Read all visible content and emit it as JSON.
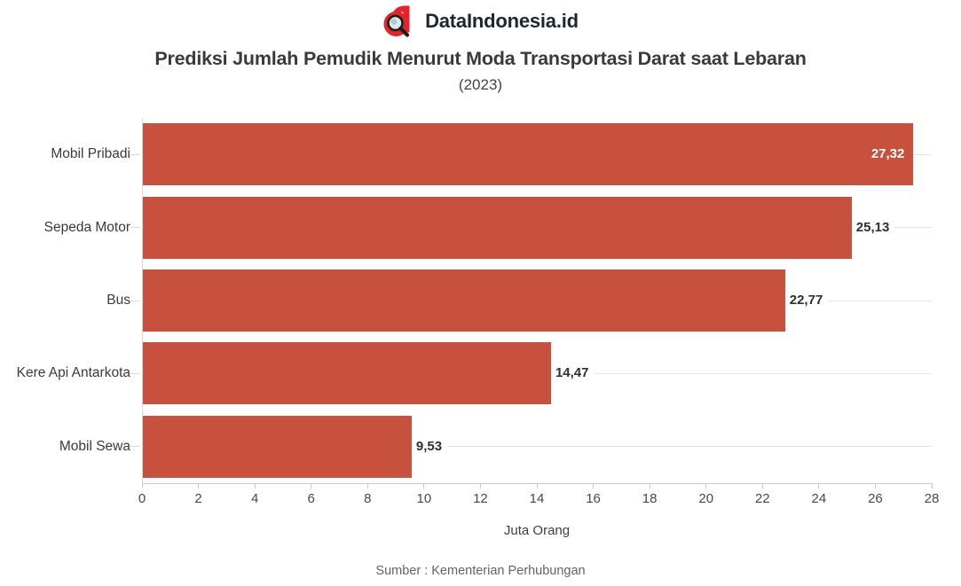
{
  "brand": {
    "name": "DataIndonesia.id"
  },
  "source": "Sumber : Kementerian Perhubungan",
  "colors": {
    "bar": "#C7513C",
    "logo_red": "#E3242B",
    "logo_handle": "#1e1e1e",
    "logo_lens": "#d8ebe7",
    "title_text": "#3A3A3A",
    "axis_line": "#C9C9C9",
    "row_grid_line": "#E6E6E6",
    "value_label": "#2F2F2F",
    "value_label_inside": "#FFFFFF"
  },
  "chart_data": {
    "type": "bar",
    "orientation": "horizontal",
    "title": "Prediksi Jumlah Pemudik Menurut Moda Transportasi Darat saat Lebaran",
    "subtitle": "(2023)",
    "categories": [
      "Mobil Pribadi",
      "Sepeda Motor",
      "Bus",
      "Kere Api Antarkota",
      "Mobil Sewa"
    ],
    "values": [
      27.32,
      25.13,
      22.77,
      14.47,
      9.53
    ],
    "value_labels": [
      "27,32",
      "25,13",
      "22,77",
      "14,47",
      "9,53"
    ],
    "value_label_inside": [
      true,
      false,
      false,
      false,
      false
    ],
    "xlabel": "Juta Orang",
    "xlim": [
      0,
      28
    ],
    "xticks": [
      0,
      2,
      4,
      6,
      8,
      10,
      12,
      14,
      16,
      18,
      20,
      22,
      24,
      26,
      28
    ],
    "grid": "thin light-gray rule across each bar row; no vertical gridlines",
    "legend": "none"
  }
}
